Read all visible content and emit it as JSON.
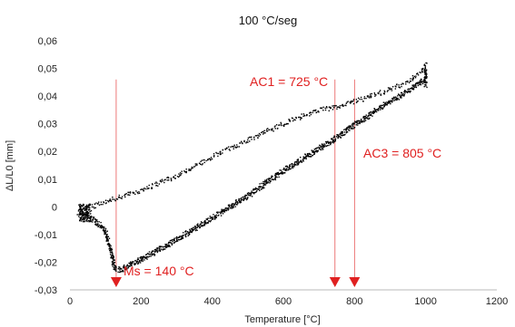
{
  "chart_data": {
    "type": "scatter",
    "title": "100 °C/seg",
    "xlabel": "Temperature [°C]",
    "ylabel": "ΔL/L0 [mm]",
    "xlim": [
      0,
      1200
    ],
    "ylim": [
      -0.03,
      0.06
    ],
    "x_ticks": [
      "0",
      "200",
      "400",
      "600",
      "800",
      "1000",
      "1200"
    ],
    "y_ticks": [
      "-0,03",
      "-0,02",
      "-0,01",
      "0",
      "0,01",
      "0,02",
      "0,03",
      "0,04",
      "0,05",
      "0,06"
    ],
    "grid": false,
    "marker_color": "#000000",
    "annotation_color": "#e02020",
    "series": [
      {
        "values": [
          {
            "x": 25,
            "y": -0.002
          },
          {
            "x": 40,
            "y": -0.003
          },
          {
            "x": 60,
            "y": -0.004
          },
          {
            "x": 80,
            "y": -0.006
          },
          {
            "x": 100,
            "y": -0.009
          },
          {
            "x": 115,
            "y": -0.016
          },
          {
            "x": 125,
            "y": -0.022
          },
          {
            "x": 140,
            "y": -0.023
          },
          {
            "x": 200,
            "y": -0.019
          },
          {
            "x": 300,
            "y": -0.012
          },
          {
            "x": 400,
            "y": -0.004
          },
          {
            "x": 500,
            "y": 0.004
          },
          {
            "x": 600,
            "y": 0.013
          },
          {
            "x": 700,
            "y": 0.021
          },
          {
            "x": 750,
            "y": 0.025
          },
          {
            "x": 805,
            "y": 0.03
          },
          {
            "x": 900,
            "y": 0.038
          },
          {
            "x": 1000,
            "y": 0.046
          },
          {
            "x": 1000,
            "y": 0.05
          },
          {
            "x": 950,
            "y": 0.045
          },
          {
            "x": 850,
            "y": 0.04
          },
          {
            "x": 750,
            "y": 0.036
          },
          {
            "x": 700,
            "y": 0.035
          },
          {
            "x": 600,
            "y": 0.03
          },
          {
            "x": 500,
            "y": 0.024
          },
          {
            "x": 400,
            "y": 0.018
          },
          {
            "x": 300,
            "y": 0.011
          },
          {
            "x": 200,
            "y": 0.006
          },
          {
            "x": 130,
            "y": 0.003
          },
          {
            "x": 80,
            "y": 0.001
          },
          {
            "x": 40,
            "y": -0.001
          }
        ]
      }
    ],
    "annotations": [
      {
        "text": "AC1 = 725 °C",
        "x": 745
      },
      {
        "text": "AC3 = 805 °C",
        "x": 800
      },
      {
        "text": "Ms = 140 °C",
        "x": 130
      }
    ]
  }
}
